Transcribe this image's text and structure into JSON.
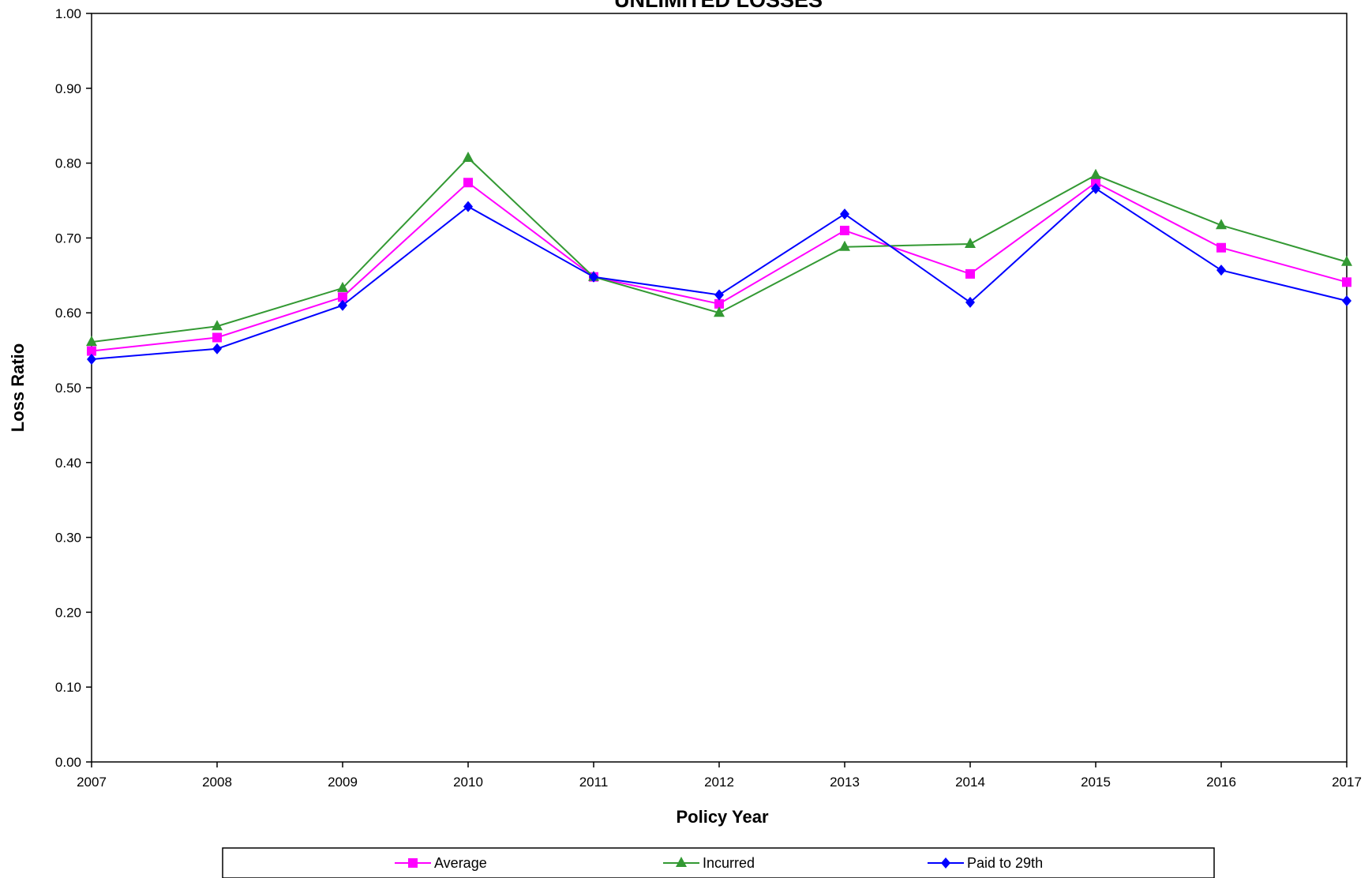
{
  "chart_data": {
    "type": "line",
    "title": "UNLIMITED LOSSES",
    "xlabel": "Policy Year",
    "ylabel": "Loss Ratio",
    "x": [
      "2007",
      "2008",
      "2009",
      "2010",
      "2011",
      "2012",
      "2013",
      "2014",
      "2015",
      "2016",
      "2017"
    ],
    "ylim": [
      0,
      1.0
    ],
    "yticks": [
      "0.00",
      "0.10",
      "0.20",
      "0.30",
      "0.40",
      "0.50",
      "0.60",
      "0.70",
      "0.80",
      "0.90",
      "1.00"
    ],
    "grid": false,
    "legend_position": "bottom",
    "series": [
      {
        "name": "Average",
        "color": "#ff00ff",
        "marker": "square",
        "values": [
          0.549,
          0.567,
          0.621,
          0.774,
          0.648,
          0.612,
          0.71,
          0.652,
          0.774,
          0.687,
          0.641
        ]
      },
      {
        "name": "Incurred",
        "color": "#339933",
        "marker": "triangle",
        "values": [
          0.561,
          0.582,
          0.633,
          0.807,
          0.648,
          0.6,
          0.688,
          0.692,
          0.784,
          0.717,
          0.668
        ]
      },
      {
        "name": "Paid to 29th",
        "color": "#0000ff",
        "marker": "diamond",
        "values": [
          0.538,
          0.552,
          0.61,
          0.742,
          0.648,
          0.624,
          0.732,
          0.614,
          0.766,
          0.657,
          0.616
        ]
      }
    ]
  }
}
